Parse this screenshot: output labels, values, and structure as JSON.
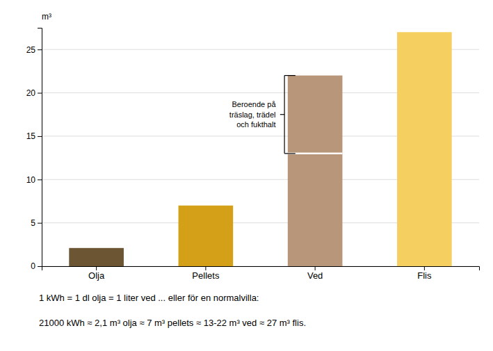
{
  "chart_data": {
    "type": "bar",
    "categories": [
      "Olja",
      "Pellets",
      "Ved",
      "Flis"
    ],
    "values": [
      2.1,
      7.0,
      22.0,
      27.0
    ],
    "colors": [
      "#6B5533",
      "#D4A017",
      "#B8967A",
      "#F5D060"
    ],
    "ylabel": "m³",
    "ylim": [
      0,
      27.5
    ],
    "yticks": [
      0,
      5,
      10,
      15,
      20,
      25
    ],
    "grid": true,
    "annotations": [
      {
        "text": "Beroende på\nträslag, trädel\noch fukthalt",
        "category": "Ved",
        "low": 13.0,
        "high": 22.0
      }
    ],
    "footnotes": [
      "1 kWh = 1 dl olja = 1 liter ved ... eller för en normalvilla:",
      "21000 kWh ≈ 2,1 m³ olja ≈ 7 m³ pellets ≈ 13-22 m³ ved ≈ 27 m³ flis."
    ]
  }
}
